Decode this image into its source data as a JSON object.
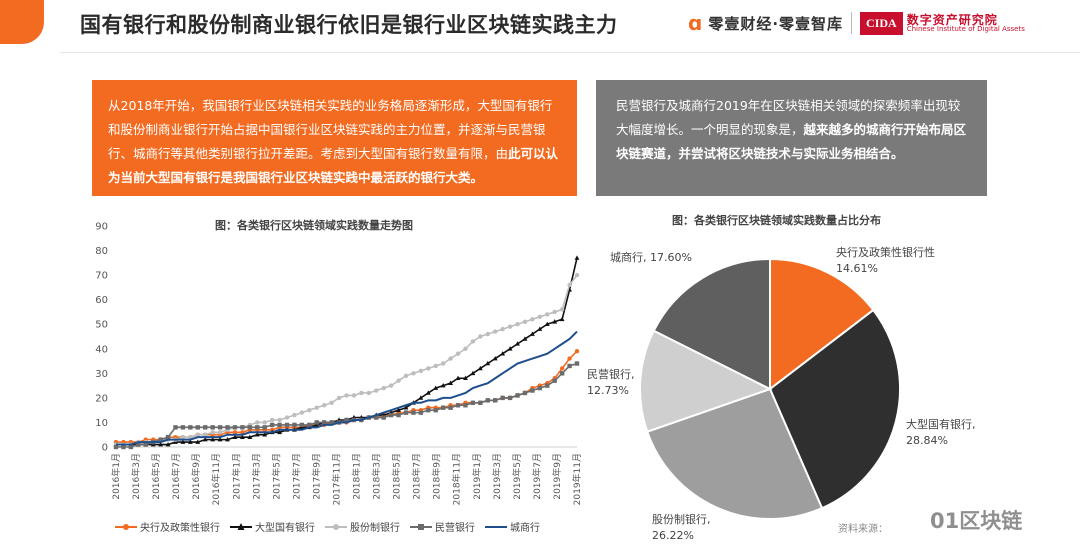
{
  "header": {
    "title": "国有银行和股份制商业银行依旧是银行业区块链实践主力",
    "brand_text": "零壹财经·零壹智库",
    "cida_logo": "CIDA",
    "cida_cn": "数字资产研究院",
    "cida_en": "Chinese Institute of Digital Assets"
  },
  "left_box": {
    "text_normal": "从2018年开始，我国银行业区块链相关实践的业务格局逐渐形成，大型国有银行和股份制商业银行开始占据中国银行业区块链实践的主力位置，并逐渐与民营银行、城商行等其他类别银行拉开差距。考虑到大型国有银行数量有限，由",
    "text_bold": "此可以认为当前大型国有银行是我国银行业区块链实践中最活跃的银行大类。"
  },
  "right_box": {
    "text_normal": "民营银行及城商行2019年在区块链相关领域的探索频率出现较大幅度增长。一个明显的现象是，",
    "text_bold": "越来越多的城商行开始布局区块链赛道，并尝试将区块链技术与实际业务相结合。"
  },
  "source": "资料来源：",
  "watermark": "01区块链",
  "colors": {
    "orange": "#f26b21",
    "black": "#111111",
    "light_gray": "#bdbdbd",
    "dark_gray": "#6b6b6b",
    "blue": "#1f4e8c"
  },
  "chart_data": [
    {
      "type": "line",
      "title": "图：各类银行区块链领域实践数量走势图",
      "ylim": [
        0,
        90
      ],
      "yticks": [
        0,
        10,
        20,
        30,
        40,
        50,
        60,
        70,
        80,
        90
      ],
      "xlabels": [
        "2016年1月",
        "2016年3月",
        "2016年5月",
        "2016年7月",
        "2016年9月",
        "2016年11月",
        "2017年1月",
        "2017年3月",
        "2017年5月",
        "2017年7月",
        "2017年9月",
        "2017年11月",
        "2018年1月",
        "2018年3月",
        "2018年5月",
        "2018年7月",
        "2018年9月",
        "2018年11月",
        "2019年1月",
        "2019年3月",
        "2019年5月",
        "2019年7月",
        "2019年9月",
        "2019年11月"
      ],
      "series": [
        {
          "name": "央行及政策性银行",
          "color": "#f26b21",
          "marker": "circle",
          "values": [
            2,
            2,
            2,
            2,
            3,
            3,
            3,
            4,
            4,
            4,
            4,
            5,
            5,
            5,
            5,
            6,
            6,
            6,
            7,
            7,
            7,
            7,
            8,
            8,
            8,
            8,
            9,
            9,
            9,
            10,
            10,
            10,
            11,
            11,
            12,
            12,
            13,
            13,
            14,
            14,
            15,
            15,
            16,
            16,
            16,
            17,
            17,
            18,
            18,
            18,
            19,
            19,
            20,
            20,
            21,
            22,
            24,
            25,
            26,
            28,
            32,
            36,
            39
          ]
        },
        {
          "name": "大型国有银行",
          "color": "#111111",
          "marker": "triangle",
          "values": [
            1,
            1,
            1,
            1,
            1,
            1,
            1,
            1,
            2,
            2,
            2,
            2,
            3,
            3,
            3,
            3,
            4,
            4,
            4,
            5,
            5,
            6,
            6,
            7,
            7,
            8,
            8,
            9,
            10,
            10,
            11,
            11,
            12,
            12,
            12,
            13,
            13,
            14,
            15,
            16,
            18,
            20,
            22,
            24,
            25,
            26,
            28,
            28,
            30,
            32,
            34,
            36,
            38,
            40,
            42,
            44,
            46,
            48,
            50,
            51,
            52,
            64,
            77
          ]
        },
        {
          "name": "股份制银行",
          "color": "#bdbdbd",
          "marker": "circle",
          "values": [
            1,
            1,
            1,
            2,
            2,
            2,
            3,
            3,
            3,
            4,
            4,
            5,
            5,
            6,
            6,
            7,
            8,
            8,
            9,
            10,
            10,
            11,
            11,
            12,
            13,
            14,
            15,
            16,
            17,
            18,
            20,
            21,
            21,
            22,
            22,
            23,
            24,
            25,
            27,
            29,
            30,
            31,
            32,
            33,
            34,
            36,
            38,
            40,
            43,
            45,
            46,
            47,
            48,
            49,
            50,
            51,
            52,
            53,
            54,
            55,
            56,
            66,
            70
          ]
        },
        {
          "name": "民营银行",
          "color": "#6b6b6b",
          "marker": "square",
          "values": [
            0,
            0,
            0,
            1,
            1,
            2,
            3,
            4,
            8,
            8,
            8,
            8,
            8,
            8,
            8,
            8,
            8,
            8,
            8,
            8,
            8,
            9,
            9,
            9,
            9,
            9,
            9,
            10,
            10,
            10,
            10,
            11,
            11,
            11,
            12,
            12,
            12,
            13,
            13,
            14,
            14,
            14,
            15,
            15,
            16,
            16,
            17,
            17,
            18,
            18,
            19,
            19,
            20,
            20,
            21,
            22,
            23,
            24,
            25,
            27,
            30,
            33,
            34
          ]
        },
        {
          "name": "城商行",
          "color": "#1f4e8c",
          "marker": "none",
          "values": [
            1,
            1,
            1,
            2,
            2,
            2,
            2,
            3,
            3,
            3,
            3,
            4,
            4,
            4,
            4,
            5,
            5,
            5,
            6,
            6,
            6,
            6,
            7,
            7,
            7,
            7,
            8,
            8,
            9,
            9,
            10,
            10,
            11,
            11,
            12,
            13,
            14,
            15,
            16,
            17,
            18,
            18,
            19,
            19,
            20,
            20,
            21,
            22,
            24,
            25,
            26,
            28,
            30,
            32,
            34,
            35,
            36,
            37,
            38,
            40,
            42,
            44,
            47
          ]
        }
      ]
    },
    {
      "type": "pie",
      "title": "图：各类银行区块链领域实践数量占比分布",
      "slices": [
        {
          "name": "央行及政策性银行",
          "value": 14.61,
          "label": "14.61%",
          "color": "#f26b21"
        },
        {
          "name": "大型国有银行",
          "value": 28.84,
          "label": "28.84%",
          "color": "#2f2f2f"
        },
        {
          "name": "股份制银行",
          "value": 26.22,
          "label": "26.22%",
          "color": "#9e9e9e"
        },
        {
          "name": "民营银行",
          "value": 12.73,
          "label": "12.73%",
          "color": "#cfcfcf"
        },
        {
          "name": "城商行",
          "value": 17.6,
          "label": "17.60%",
          "color": "#5f5f5f"
        }
      ]
    }
  ]
}
